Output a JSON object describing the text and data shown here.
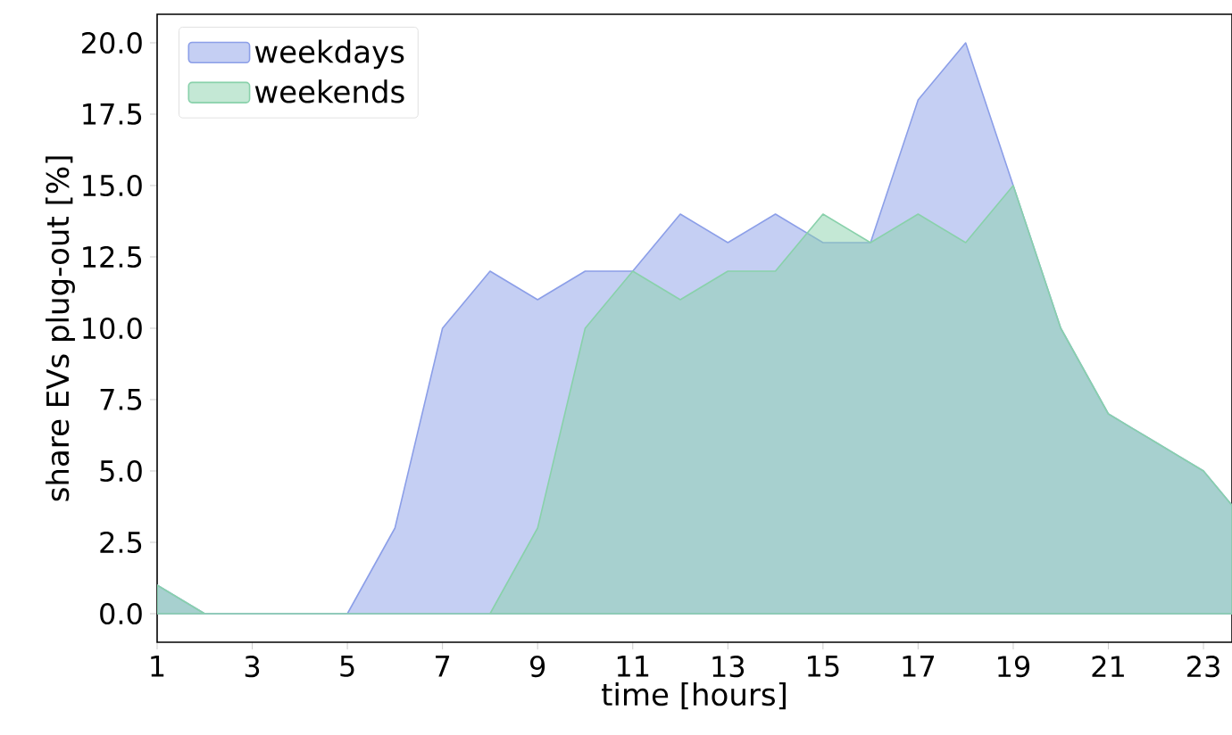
{
  "chart_data": {
    "type": "area",
    "xlabel": "time [hours]",
    "ylabel": "share EVs plug-out [%]",
    "x": [
      1,
      2,
      3,
      4,
      5,
      6,
      7,
      8,
      9,
      10,
      11,
      12,
      13,
      14,
      15,
      16,
      17,
      18,
      19,
      20,
      21,
      22,
      23,
      23.6
    ],
    "series": [
      {
        "name": "weekdays",
        "color": "#8c9fe8",
        "values": [
          1,
          0,
          0,
          0,
          0,
          3,
          10,
          12,
          11,
          12,
          12,
          14,
          13,
          14,
          13,
          13,
          18,
          20,
          15,
          10,
          7,
          6,
          5,
          3.8
        ]
      },
      {
        "name": "weekends",
        "color": "#89d1ab",
        "values": [
          1,
          0,
          0,
          0,
          0,
          0,
          0,
          0,
          3,
          10,
          12,
          11,
          12,
          12,
          14,
          13,
          14,
          13,
          15,
          10,
          7,
          6,
          5,
          3.8
        ]
      }
    ],
    "xlim": [
      1,
      23.6
    ],
    "ylim": [
      -1,
      21
    ],
    "xticks": [
      1,
      3,
      5,
      7,
      9,
      11,
      13,
      15,
      17,
      19,
      21,
      23
    ],
    "yticks": [
      {
        "value": 0,
        "label": "0.0"
      },
      {
        "value": 2.5,
        "label": "2.5"
      },
      {
        "value": 5,
        "label": "5.0"
      },
      {
        "value": 7.5,
        "label": "7.5"
      },
      {
        "value": 10,
        "label": "10.0"
      },
      {
        "value": 12.5,
        "label": "12.5"
      },
      {
        "value": 15,
        "label": "15.0"
      },
      {
        "value": 17.5,
        "label": "17.5"
      },
      {
        "value": 20,
        "label": "20.0"
      }
    ],
    "legend": "top left",
    "grid": false
  }
}
